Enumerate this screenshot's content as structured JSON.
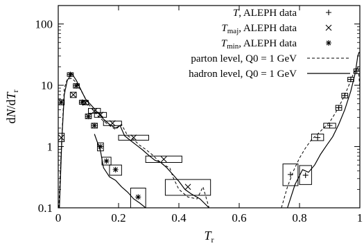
{
  "chart_data": {
    "type": "line",
    "xlabel": "T_r",
    "ylabel": "dN/dT_r",
    "xlim": [
      0,
      1
    ],
    "ylim": [
      0.1,
      200
    ],
    "yscale": "log",
    "grid": false,
    "legend_placement": "top-right",
    "x_ticks": [
      "0",
      "0.2",
      "0.4",
      "0.6",
      "0.8",
      "1"
    ],
    "y_ticks": [
      "0.1",
      "1",
      "10",
      "100"
    ],
    "series": [
      {
        "name": "T, ALEPH data",
        "legend_label": {
          "var": "T",
          "sub": "",
          "text": ", ALEPH data"
        },
        "marker": "plus",
        "points": [
          {
            "x": 0.77,
            "y": 0.35,
            "ex": 0.025,
            "ey": [
              0.23,
              0.52
            ]
          },
          {
            "x": 0.82,
            "y": 0.34,
            "ex": 0.02,
            "ey": [
              0.24,
              0.49
            ]
          },
          {
            "x": 0.86,
            "y": 1.4,
            "ex": 0.02,
            "ey": [
              1.25,
              1.6
            ]
          },
          {
            "x": 0.9,
            "y": 2.2,
            "ex": 0.02,
            "ey": [
              2.0,
              2.4
            ]
          },
          {
            "x": 0.93,
            "y": 4.3,
            "ex": 0.01,
            "ey": [
              3.9,
              4.7
            ]
          },
          {
            "x": 0.95,
            "y": 6.8,
            "ex": 0.01,
            "ey": [
              6.2,
              7.4
            ]
          },
          {
            "x": 0.97,
            "y": 12.5,
            "ex": 0.01,
            "ey": [
              11.5,
              13.5
            ]
          },
          {
            "x": 0.99,
            "y": 17.0,
            "ex": 0.01,
            "ey": [
              15.5,
              18.5
            ]
          }
        ]
      },
      {
        "name": "T_maj, ALEPH data",
        "legend_label": {
          "var": "T",
          "sub": "maj",
          "text": ", ALEPH data"
        },
        "marker": "cross",
        "points": [
          {
            "x": 0.01,
            "y": 1.4,
            "ex": 0.01,
            "ey": [
              1.2,
              1.65
            ]
          },
          {
            "x": 0.05,
            "y": 7.0,
            "ex": 0.01,
            "ey": [
              6.3,
              7.7
            ]
          },
          {
            "x": 0.09,
            "y": 5.2,
            "ex": 0.01,
            "ey": [
              4.8,
              5.6
            ]
          },
          {
            "x": 0.12,
            "y": 3.8,
            "ex": 0.02,
            "ey": [
              3.5,
              4.2
            ]
          },
          {
            "x": 0.14,
            "y": 3.3,
            "ex": 0.02,
            "ey": [
              3.0,
              3.6
            ]
          },
          {
            "x": 0.18,
            "y": 2.4,
            "ex": 0.03,
            "ey": [
              2.2,
              2.6
            ]
          },
          {
            "x": 0.25,
            "y": 1.4,
            "ex": 0.05,
            "ey": [
              1.27,
              1.53
            ]
          },
          {
            "x": 0.35,
            "y": 0.62,
            "ex": 0.06,
            "ey": [
              0.55,
              0.7
            ]
          },
          {
            "x": 0.43,
            "y": 0.22,
            "ex": 0.075,
            "ey": [
              0.16,
              0.29
            ]
          }
        ]
      },
      {
        "name": "T_min, ALEPH data",
        "legend_label": {
          "var": "T",
          "sub": "min",
          "text": ", ALEPH data"
        },
        "marker": "star",
        "points": [
          {
            "x": 0.01,
            "y": 5.3,
            "ex": 0.01,
            "ey": [
              4.8,
              5.8
            ]
          },
          {
            "x": 0.04,
            "y": 15.0,
            "ex": 0.01,
            "ey": [
              14.0,
              16.0
            ]
          },
          {
            "x": 0.06,
            "y": 9.8,
            "ex": 0.01,
            "ey": [
              9.0,
              10.6
            ]
          },
          {
            "x": 0.08,
            "y": 5.3,
            "ex": 0.01,
            "ey": [
              4.9,
              5.7
            ]
          },
          {
            "x": 0.1,
            "y": 3.1,
            "ex": 0.01,
            "ey": [
              2.85,
              3.4
            ]
          },
          {
            "x": 0.12,
            "y": 2.2,
            "ex": 0.01,
            "ey": [
              2.0,
              2.4
            ]
          },
          {
            "x": 0.14,
            "y": 1.0,
            "ex": 0.01,
            "ey": [
              0.85,
              1.15
            ]
          },
          {
            "x": 0.16,
            "y": 0.58,
            "ex": 0.015,
            "ey": [
              0.5,
              0.67
            ]
          },
          {
            "x": 0.19,
            "y": 0.42,
            "ex": 0.02,
            "ey": [
              0.34,
              0.5
            ]
          },
          {
            "x": 0.265,
            "y": 0.15,
            "ex": 0.025,
            "ey": [
              0.1,
              0.21
            ]
          }
        ]
      },
      {
        "name": "parton level, Q0 = 1 GeV",
        "legend_label": {
          "var": "",
          "sub": "",
          "text": "parton level, Q0 = 1 GeV"
        },
        "style": "dashed",
        "curves": [
          [
            [
              0.002,
              0.1
            ],
            [
              0.01,
              0.9
            ],
            [
              0.02,
              9.0
            ],
            [
              0.03,
              12.5
            ],
            [
              0.045,
              13.0
            ],
            [
              0.06,
              11.0
            ],
            [
              0.08,
              7.5
            ],
            [
              0.1,
              5.0
            ],
            [
              0.12,
              3.6
            ],
            [
              0.15,
              2.6
            ],
            [
              0.17,
              2.2
            ],
            [
              0.19,
              1.9
            ],
            [
              0.21,
              2.3
            ],
            [
              0.23,
              1.5
            ],
            [
              0.25,
              1.3
            ],
            [
              0.27,
              1.05
            ],
            [
              0.29,
              0.9
            ],
            [
              0.31,
              0.75
            ],
            [
              0.33,
              0.6
            ],
            [
              0.35,
              0.5
            ],
            [
              0.37,
              0.45
            ],
            [
              0.38,
              0.32
            ],
            [
              0.4,
              0.2
            ],
            [
              0.43,
              0.15
            ],
            [
              0.46,
              0.14
            ],
            [
              0.48,
              0.22
            ],
            [
              0.5,
              0.1
            ]
          ],
          [
            [
              0.74,
              0.1
            ],
            [
              0.76,
              0.22
            ],
            [
              0.78,
              0.4
            ],
            [
              0.8,
              0.65
            ],
            [
              0.82,
              0.95
            ],
            [
              0.84,
              1.3
            ],
            [
              0.86,
              1.6
            ],
            [
              0.88,
              2.0
            ],
            [
              0.9,
              2.5
            ],
            [
              0.92,
              3.6
            ],
            [
              0.94,
              5.5
            ],
            [
              0.96,
              9.0
            ],
            [
              0.98,
              16.0
            ],
            [
              0.995,
              20.0
            ],
            [
              1.0,
              9.0
            ]
          ]
        ]
      },
      {
        "name": "hadron level, Q0 = 1 GeV",
        "legend_label": {
          "var": "",
          "sub": "",
          "text": "hadron level, Q0 = 1 GeV"
        },
        "style": "solid",
        "curves": [
          [
            [
              0.004,
              0.1
            ],
            [
              0.012,
              1.3
            ],
            [
              0.02,
              7.0
            ],
            [
              0.03,
              12.0
            ],
            [
              0.045,
              15.5
            ],
            [
              0.06,
              12.0
            ],
            [
              0.075,
              8.5
            ],
            [
              0.09,
              6.0
            ],
            [
              0.11,
              4.7
            ],
            [
              0.13,
              3.6
            ],
            [
              0.15,
              2.8
            ],
            [
              0.17,
              2.3
            ],
            [
              0.19,
              2.0
            ],
            [
              0.205,
              2.2
            ],
            [
              0.22,
              1.5
            ],
            [
              0.24,
              1.25
            ],
            [
              0.26,
              1.05
            ],
            [
              0.28,
              0.88
            ],
            [
              0.3,
              0.72
            ],
            [
              0.32,
              0.6
            ],
            [
              0.34,
              0.55
            ],
            [
              0.36,
              0.45
            ],
            [
              0.38,
              0.35
            ],
            [
              0.4,
              0.27
            ],
            [
              0.42,
              0.2
            ],
            [
              0.44,
              0.17
            ],
            [
              0.47,
              0.14
            ],
            [
              0.5,
              0.1
            ]
          ],
          [
            [
              0.76,
              0.1
            ],
            [
              0.785,
              0.24
            ],
            [
              0.81,
              0.42
            ],
            [
              0.83,
              0.38
            ],
            [
              0.85,
              0.5
            ],
            [
              0.87,
              0.75
            ],
            [
              0.89,
              1.05
            ],
            [
              0.91,
              1.45
            ],
            [
              0.93,
              2.3
            ],
            [
              0.95,
              4.0
            ],
            [
              0.97,
              8.0
            ],
            [
              0.985,
              16.0
            ],
            [
              0.993,
              30.0
            ],
            [
              0.998,
              35.0
            ]
          ]
        ],
        "spiky_tail": [
          [
            0.12,
            1.6
          ],
          [
            0.14,
            0.85
          ],
          [
            0.15,
            0.45
          ],
          [
            0.17,
            0.32
          ],
          [
            0.19,
            0.28
          ],
          [
            0.21,
            0.22
          ],
          [
            0.23,
            0.18
          ],
          [
            0.25,
            0.14
          ],
          [
            0.27,
            0.12
          ],
          [
            0.29,
            0.1
          ]
        ]
      }
    ]
  }
}
